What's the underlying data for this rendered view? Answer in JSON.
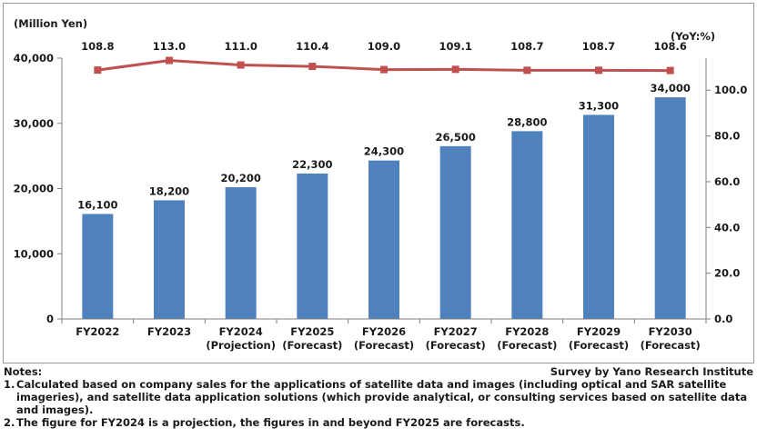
{
  "chart_data": {
    "type": "bar",
    "categories": [
      [
        "FY2022"
      ],
      [
        "FY2023"
      ],
      [
        "FY2024",
        "(Projection)"
      ],
      [
        "FY2025",
        "(Forecast)"
      ],
      [
        "FY2026",
        "(Forecast)"
      ],
      [
        "FY2027",
        "(Forecast)"
      ],
      [
        "FY2028",
        "(Forecast)"
      ],
      [
        "FY2029",
        "(Forecast)"
      ],
      [
        "FY2030",
        "(Forecast)"
      ]
    ],
    "series": [
      {
        "type": "bar",
        "axis": "left",
        "values": [
          16100,
          18200,
          20200,
          22300,
          24300,
          26500,
          28800,
          31300,
          34000
        ],
        "labels": [
          "16,100",
          "18,200",
          "20,200",
          "22,300",
          "24,300",
          "26,500",
          "28,800",
          "31,300",
          "34,000"
        ],
        "color": "#4f81bd"
      },
      {
        "type": "line",
        "axis": "right",
        "values": [
          108.8,
          113.0,
          111.0,
          110.4,
          109.0,
          109.1,
          108.7,
          108.7,
          108.6
        ],
        "labels": [
          "108.8",
          "113.0",
          "111.0",
          "110.4",
          "109.0",
          "109.1",
          "108.7",
          "108.7",
          "108.6"
        ],
        "color": "#c0504d"
      }
    ],
    "ylabel": "(Million Yen)",
    "ylabel_right": "(YoY:%)",
    "ylim": [
      0,
      40000
    ],
    "y_ticks": [
      0,
      10000,
      20000,
      30000,
      40000
    ],
    "y_tick_labels": [
      "0",
      "10,000",
      "20,000",
      "30,000",
      "40,000"
    ],
    "ylim_right": [
      0,
      114
    ],
    "y_right_ticks": [
      0,
      20,
      40,
      60,
      80,
      100
    ],
    "y_right_tick_labels": [
      "0.0",
      "20.0",
      "40.0",
      "60.0",
      "80.0",
      "100.0"
    ],
    "grid": false,
    "legend": "none"
  },
  "notes": {
    "heading": "Notes:",
    "source": "Survey by Yano Research Institute",
    "items": [
      {
        "num": "1.",
        "text": "Calculated based on company sales for the applications of satellite data and images (including optical and SAR satellite imageries), and satellite data application solutions (which provide analytical, or consulting services based on satellite data and images)."
      },
      {
        "num": "2.",
        "text": "The figure for FY2024 is a projection, the figures in and beyond FY2025 are forecasts."
      }
    ]
  }
}
